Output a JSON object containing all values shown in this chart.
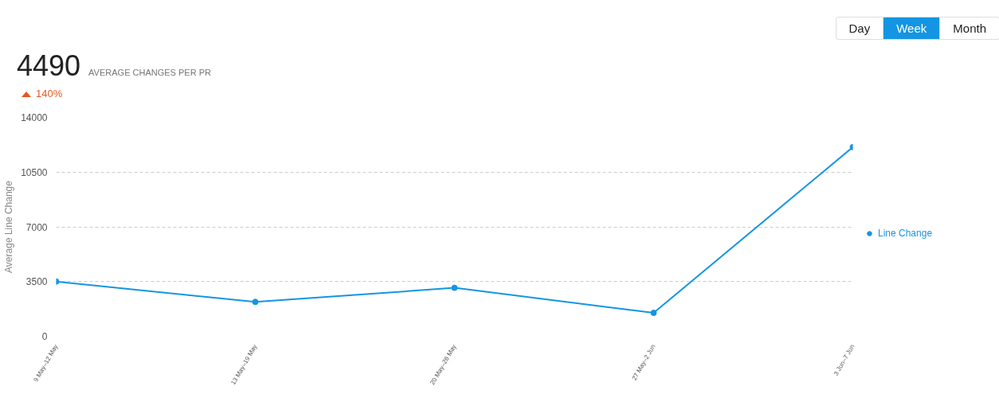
{
  "chart_data": {
    "type": "line",
    "title": "4490",
    "subtitle": "AVERAGE CHANGES PER PR",
    "ylabel": "Average Line Change",
    "annotations": [
      "140%",
      "Day",
      "Week",
      "Month"
    ],
    "categories": [
      "9 May–12 May",
      "13 May–19 May",
      "20 May–26 May",
      "27 May–2 Jun",
      "3 Jun–7 Jun"
    ],
    "series": [
      {
        "name": "Line Change",
        "color": "#1495e3",
        "values": [
          3500,
          2200,
          3100,
          1500,
          12100
        ]
      }
    ],
    "ylim": [
      0,
      14000
    ],
    "yticks": [
      0,
      3500,
      7000,
      10500,
      14000
    ],
    "grid": "y",
    "legend": "right",
    "marker": "circle",
    "line_style": "solid"
  }
}
